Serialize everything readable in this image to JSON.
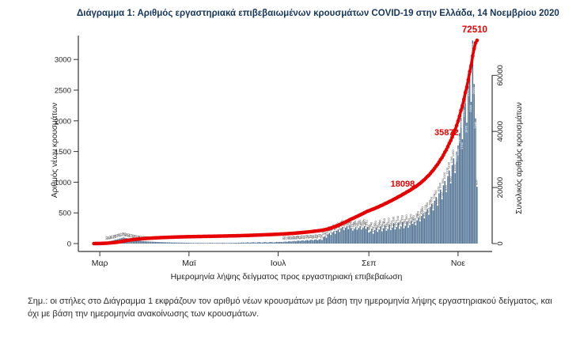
{
  "page": {
    "title": "Διάγραμμα 1: Αριθμός εργαστηριακά επιβεβαιωμένων κρουσμάτων COVID-19 στην Ελλάδα, 14 Νοεμβρίου 2020",
    "footnote": "Σημ.: οι στήλες στο Διάγραμμα 1 εκφράζουν τον αριθμό νέων κρουσμάτων με βάση την ημερομηνία λήψης εργαστηριακού δείγματος, και όχι με βάση την ημερομηνία ανακοίνωσης των κρουσμάτων."
  },
  "chart_data": {
    "type": "bar",
    "subtype": "daily bars with cumulative line (dual axis)",
    "title": "Διάγραμμα 1: Αριθμός εργαστηριακά επιβεβαιωμένων κρουσμάτων COVID-19 στην Ελλάδα, 14 Νοεμβρίου 2020",
    "xlabel": "Ημερομηνία λήψης δείγματος προς εργαστηριακή επιβεβαίωση",
    "x_axis": {
      "tick_labels": [
        "Μαρ",
        "Μαϊ",
        "Ιουλ",
        "Σεπ",
        "Νοε"
      ],
      "tick_day_indices": [
        4,
        65,
        126,
        188,
        249
      ],
      "span": "late February to 14 November 2020, one bar per day"
    },
    "y_left": {
      "label": "Αριθμός νέων κρουσμάτων",
      "ticks": [
        0,
        500,
        1000,
        1500,
        2000,
        2500,
        3000
      ],
      "range": [
        0,
        3400
      ],
      "grid": false
    },
    "y_right": {
      "label": "Συνολικός αριθμός κρουσμάτων",
      "ticks": [
        0,
        20000,
        40000,
        60000
      ],
      "range": [
        0,
        74000
      ],
      "grid": false
    },
    "series": [
      {
        "name": "Αριθμός νέων κρουσμάτων (στήλες)",
        "axis": "left",
        "values": [
          3,
          4,
          6,
          8,
          12,
          15,
          18,
          22,
          26,
          30,
          35,
          40,
          46,
          52,
          58,
          64,
          70,
          78,
          85,
          92,
          99,
          95,
          90,
          85,
          80,
          75,
          70,
          65,
          60,
          56,
          52,
          48,
          45,
          42,
          40,
          38,
          36,
          34,
          33,
          32,
          30,
          29,
          28,
          27,
          26,
          25,
          24,
          23,
          22,
          21,
          20,
          20,
          19,
          18,
          18,
          17,
          17,
          16,
          16,
          15,
          15,
          14,
          14,
          13,
          13,
          12,
          10,
          9,
          11,
          8,
          10,
          12,
          9,
          10,
          11,
          10,
          9,
          8,
          10,
          11,
          12,
          10,
          9,
          10,
          11,
          10,
          9,
          10,
          12,
          11,
          10,
          9,
          10,
          11,
          10,
          12,
          12,
          14,
          11,
          15,
          13,
          16,
          18,
          14,
          17,
          20,
          16,
          15,
          19,
          22,
          18,
          16,
          20,
          24,
          19,
          17,
          21,
          25,
          20,
          18,
          22,
          26,
          21,
          19,
          23,
          28,
          24,
          26,
          28,
          25,
          30,
          33,
          29,
          35,
          38,
          32,
          40,
          43,
          36,
          45,
          48,
          41,
          50,
          52,
          44,
          55,
          58,
          47,
          60,
          63,
          50,
          65,
          68,
          54,
          70,
          73,
          58,
          110,
          120,
          95,
          150,
          170,
          140,
          180,
          200,
          160,
          210,
          230,
          190,
          250,
          270,
          220,
          260,
          280,
          235,
          300,
          250,
          210,
          240,
          265,
          225,
          255,
          280,
          230,
          260,
          285,
          240,
          270,
          180,
          200,
          240,
          160,
          220,
          260,
          190,
          230,
          280,
          200,
          250,
          300,
          210,
          240,
          310,
          220,
          260,
          330,
          230,
          270,
          340,
          240,
          280,
          350,
          250,
          290,
          360,
          260,
          300,
          370,
          320,
          350,
          300,
          380,
          420,
          360,
          450,
          490,
          410,
          520,
          560,
          470,
          600,
          650,
          540,
          700,
          760,
          620,
          820,
          880,
          720,
          950,
          1020,
          840,
          1100,
          1190,
          980,
          1280,
          1390,
          1150,
          1500,
          1600,
          1800,
          2050,
          1700,
          2230,
          2450,
          1970,
          2570,
          2900,
          2310,
          3310,
          2600,
          2040,
          926
        ]
      },
      {
        "name": "Συνολικός αριθμός κρουσμάτων (κόκκινη γραμμή)",
        "axis": "right",
        "definition": "cumulative sum of the daily bar values",
        "final_value": 72510
      }
    ],
    "annotations": [
      {
        "label": "18098",
        "value": 18098
      },
      {
        "label": "35872",
        "value": 35872
      },
      {
        "label": "72510",
        "value": 72510
      }
    ],
    "legend": "none",
    "colors": {
      "bar": "#4d7092",
      "line": "#e60000",
      "annotation_text": "#e60000",
      "title_text": "#17365d",
      "axis_text": "#222222",
      "bar_label_text": "#4a4a4a",
      "bar_label_inside_text": "#ffffff"
    }
  }
}
